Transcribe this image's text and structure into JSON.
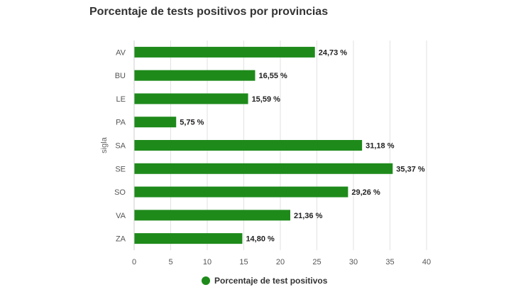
{
  "chart_data": {
    "type": "bar",
    "orientation": "horizontal",
    "title": "Porcentaje de tests positivos por provincias",
    "ylabel": "sigla",
    "xlabel": "",
    "categories": [
      "AV",
      "BU",
      "LE",
      "PA",
      "SA",
      "SE",
      "SO",
      "VA",
      "ZA"
    ],
    "series": [
      {
        "name": "Porcentaje de test positivos",
        "values": [
          24.73,
          16.55,
          15.59,
          5.75,
          31.18,
          35.37,
          29.26,
          21.36,
          14.8
        ],
        "labels": [
          "24,73 %",
          "16,55 %",
          "15,59 %",
          "5,75 %",
          "31,18 %",
          "35,37 %",
          "29,26 %",
          "21,36 %",
          "14,80 %"
        ]
      }
    ],
    "xlim": [
      0,
      40
    ],
    "xticks": [
      0,
      5,
      10,
      15,
      20,
      25,
      30,
      35,
      40
    ],
    "grid": "vertical",
    "legend_position": "bottom-center",
    "bar_color": "#1e8a1a"
  }
}
